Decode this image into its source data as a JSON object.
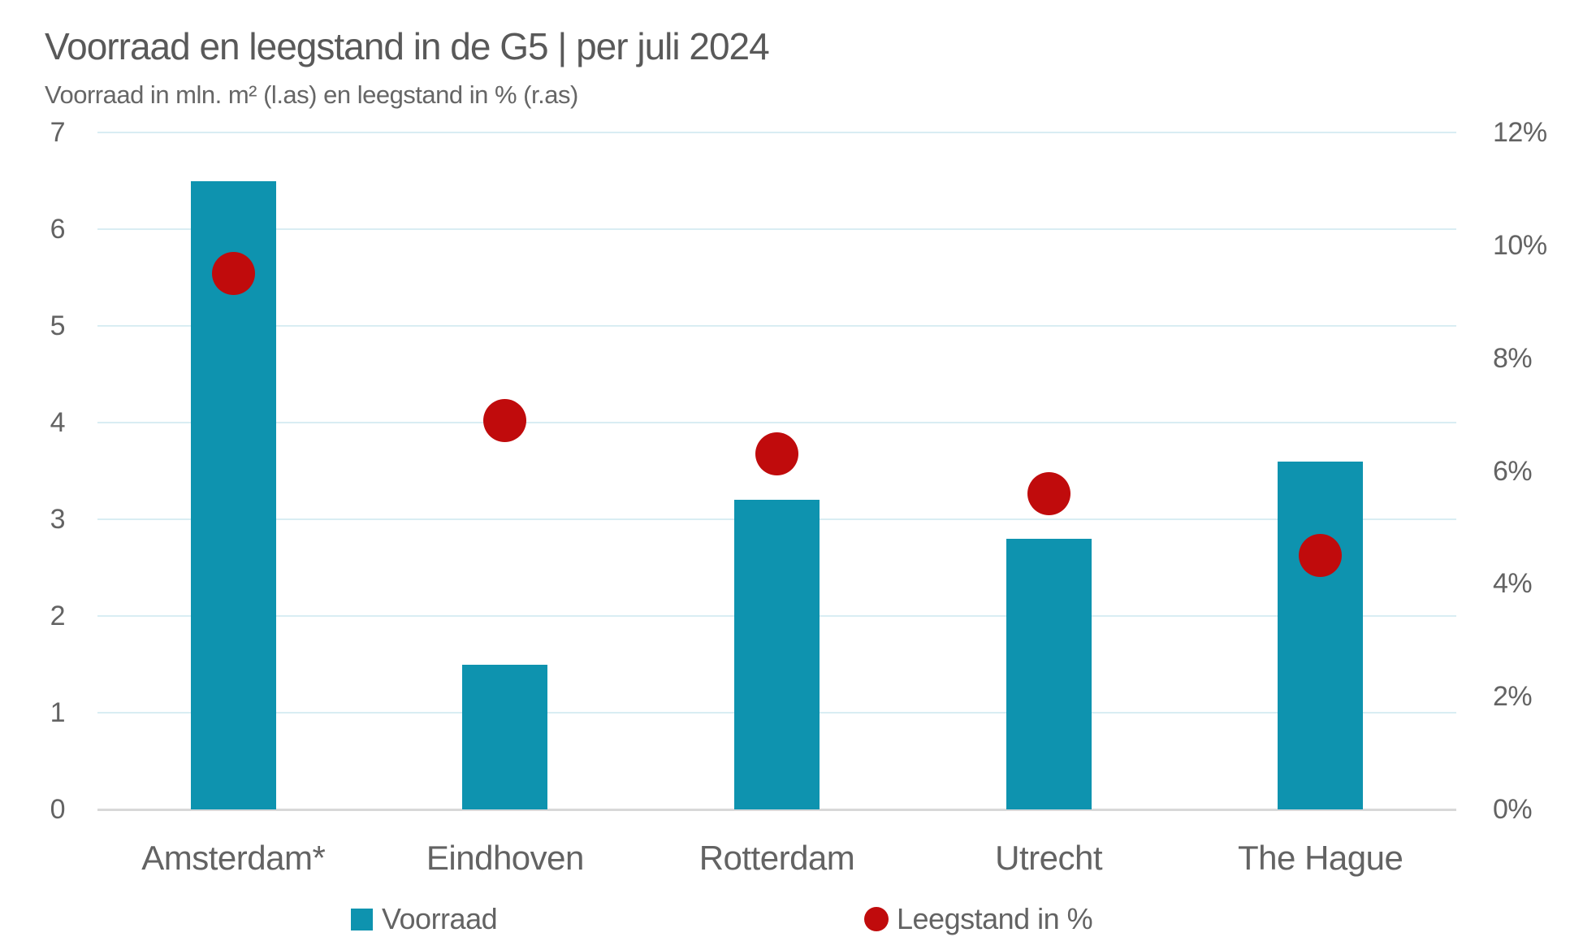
{
  "title": "Voorraad en leegstand in de G5 | per juli 2024",
  "subtitle": "Voorraad in mln. m² (l.as) en leegstand in % (r.as)",
  "colors": {
    "bar": "#0E93AF",
    "dot": "#C00B0C",
    "grid": "#D9EDF3",
    "zero_line": "#D8D8D8",
    "text": "#595959"
  },
  "legend": [
    {
      "label": "Voorraad",
      "marker": "square"
    },
    {
      "label": "Leegstand in %",
      "marker": "circle"
    }
  ],
  "chart_data": {
    "type": "bar",
    "subtype": "bar+scatter dual axis",
    "categories": [
      "Amsterdam*",
      "Eindhoven",
      "Rotterdam",
      "Utrecht",
      "The Hague"
    ],
    "series": [
      {
        "name": "Voorraad",
        "type": "bar",
        "axis": "left",
        "values": [
          6.5,
          1.5,
          3.2,
          2.8,
          3.6
        ]
      },
      {
        "name": "Leegstand in %",
        "type": "scatter",
        "axis": "right",
        "values": [
          9.5,
          6.9,
          6.3,
          5.6,
          4.5
        ]
      }
    ],
    "title": "Voorraad en leegstand in de G5 | per juli 2024",
    "subtitle": "Voorraad in mln. m² (l.as) en leegstand in % (r.as)",
    "left_axis": {
      "label": "Voorraad in mln. m²",
      "min": 0,
      "max": 7,
      "ticks": [
        7,
        6,
        5,
        4,
        3,
        2,
        1,
        0
      ]
    },
    "right_axis": {
      "label": "Leegstand in %",
      "min": 0,
      "max": 12,
      "ticks": [
        "12%",
        "10%",
        "8%",
        "6%",
        "4%",
        "2%",
        "0%"
      ],
      "tick_values": [
        12,
        10,
        8,
        6,
        4,
        2,
        0
      ]
    },
    "grid": true,
    "gridlines_follow": "left_axis",
    "legend_position": "bottom"
  }
}
